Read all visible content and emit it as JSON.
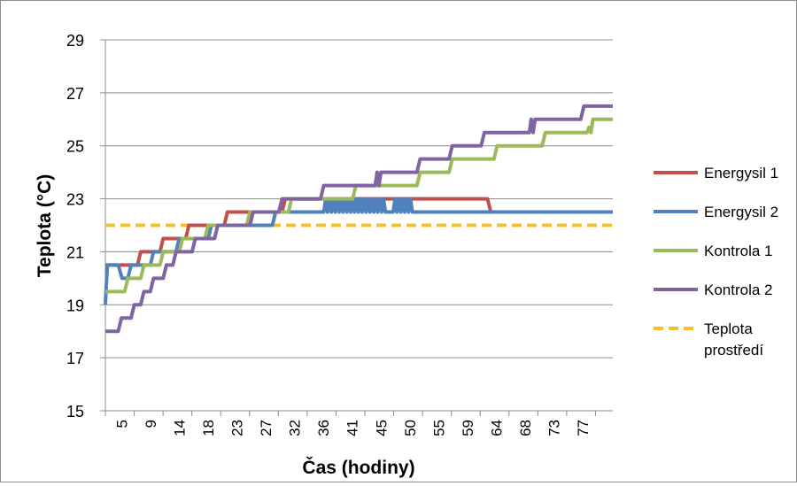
{
  "chart_data": {
    "type": "line",
    "xlabel": "Čas (hodiny)",
    "ylabel": "Teplota (°C)",
    "x_range": [
      0,
      79
    ],
    "ylim": [
      15,
      29
    ],
    "y_ticks": [
      15,
      17,
      19,
      21,
      23,
      25,
      27,
      29
    ],
    "x_tick_labels": [
      "5",
      "9",
      "14",
      "18",
      "23",
      "27",
      "32",
      "36",
      "41",
      "45",
      "50",
      "55",
      "59",
      "64",
      "68",
      "73",
      "77"
    ],
    "grid": "horizontal",
    "legend_position": "right",
    "series": [
      {
        "name": "Energysil 1",
        "color": "#c0504d",
        "dashed": false,
        "points": [
          [
            0,
            20.5
          ],
          [
            5,
            20.5
          ],
          [
            5.5,
            21
          ],
          [
            8.5,
            21
          ],
          [
            9,
            21.5
          ],
          [
            12.5,
            21.5
          ],
          [
            13,
            22
          ],
          [
            18.5,
            22
          ],
          [
            19,
            22.5
          ],
          [
            27.5,
            22.5
          ],
          [
            28,
            23
          ],
          [
            59.5,
            23
          ],
          [
            60,
            22.5
          ],
          [
            79,
            22.5
          ]
        ]
      },
      {
        "name": "Energysil 2",
        "color": "#4f81bd",
        "dashed": false,
        "points": [
          [
            0,
            19
          ],
          [
            0.3,
            20.5
          ],
          [
            2,
            20.5
          ],
          [
            2.6,
            20
          ],
          [
            3.5,
            20
          ],
          [
            4,
            20.5
          ],
          [
            7,
            20.5
          ],
          [
            7.5,
            21
          ],
          [
            11,
            21
          ],
          [
            11.5,
            21.5
          ],
          [
            16,
            21.5
          ],
          [
            16.5,
            22
          ],
          [
            26,
            22
          ],
          [
            26.5,
            22.5
          ],
          [
            34,
            22.5
          ],
          [
            34.3,
            23
          ],
          [
            34.6,
            22.5
          ],
          [
            34.9,
            23
          ],
          [
            35.2,
            22.5
          ],
          [
            35.5,
            23
          ],
          [
            35.8,
            22.5
          ],
          [
            36.1,
            23
          ],
          [
            36.4,
            22.5
          ],
          [
            36.7,
            23
          ],
          [
            37,
            22.5
          ],
          [
            37.3,
            23
          ],
          [
            37.6,
            22.5
          ],
          [
            37.9,
            23
          ],
          [
            38.2,
            22.5
          ],
          [
            38.5,
            23
          ],
          [
            38.8,
            22.5
          ],
          [
            39.1,
            23
          ],
          [
            39.4,
            22.5
          ],
          [
            39.7,
            23
          ],
          [
            40,
            22.5
          ],
          [
            40.3,
            23
          ],
          [
            40.6,
            22.5
          ],
          [
            40.9,
            23
          ],
          [
            41.2,
            22.5
          ],
          [
            41.5,
            23
          ],
          [
            41.8,
            22.5
          ],
          [
            42.1,
            23
          ],
          [
            42.4,
            22.5
          ],
          [
            42.7,
            23
          ],
          [
            43,
            22.5
          ],
          [
            43.3,
            23
          ],
          [
            43.6,
            22.5
          ],
          [
            44.8,
            22.5
          ],
          [
            45.1,
            23
          ],
          [
            45.4,
            22.5
          ],
          [
            45.7,
            23
          ],
          [
            46,
            22.5
          ],
          [
            46.3,
            23
          ],
          [
            46.6,
            22.5
          ],
          [
            46.9,
            23
          ],
          [
            47.2,
            22.5
          ],
          [
            47.5,
            23
          ],
          [
            47.8,
            22.5
          ],
          [
            79,
            22.5
          ]
        ]
      },
      {
        "name": "Kontrola 1",
        "color": "#9bbb59",
        "dashed": false,
        "points": [
          [
            0,
            19.5
          ],
          [
            3,
            19.5
          ],
          [
            3.5,
            20
          ],
          [
            5.5,
            20
          ],
          [
            6,
            20.5
          ],
          [
            8.5,
            20.5
          ],
          [
            9,
            21
          ],
          [
            11.5,
            21
          ],
          [
            12,
            21.5
          ],
          [
            15.5,
            21.5
          ],
          [
            16,
            22
          ],
          [
            22,
            22
          ],
          [
            22.5,
            22.5
          ],
          [
            28.5,
            22.5
          ],
          [
            29,
            23
          ],
          [
            38.5,
            23
          ],
          [
            39,
            23.5
          ],
          [
            48.5,
            23.5
          ],
          [
            49,
            24
          ],
          [
            53.5,
            24
          ],
          [
            54,
            24.5
          ],
          [
            60.5,
            24.5
          ],
          [
            61,
            25
          ],
          [
            68,
            25
          ],
          [
            68.5,
            25.5
          ],
          [
            75,
            25.5
          ],
          [
            75.3,
            25.7
          ],
          [
            75.6,
            25.5
          ],
          [
            75.9,
            26
          ],
          [
            79,
            26
          ]
        ]
      },
      {
        "name": "Kontrola 2",
        "color": "#8064a2",
        "dashed": false,
        "points": [
          [
            0,
            18
          ],
          [
            2,
            18
          ],
          [
            2.5,
            18.5
          ],
          [
            4,
            18.5
          ],
          [
            4.5,
            19
          ],
          [
            5.5,
            19
          ],
          [
            6,
            19.5
          ],
          [
            7,
            19.5
          ],
          [
            7.5,
            20
          ],
          [
            9,
            20
          ],
          [
            9.5,
            20.5
          ],
          [
            10.5,
            20.5
          ],
          [
            11,
            21
          ],
          [
            13.5,
            21
          ],
          [
            14,
            21.5
          ],
          [
            17,
            21.5
          ],
          [
            17.5,
            22
          ],
          [
            22.5,
            22
          ],
          [
            23,
            22.5
          ],
          [
            27,
            22.5
          ],
          [
            27.5,
            23
          ],
          [
            33.5,
            23
          ],
          [
            34,
            23.5
          ],
          [
            42,
            23.5
          ],
          [
            42.3,
            24
          ],
          [
            42.6,
            23.5
          ],
          [
            42.9,
            24
          ],
          [
            48.5,
            24
          ],
          [
            49,
            24.5
          ],
          [
            53.5,
            24.5
          ],
          [
            54,
            25
          ],
          [
            58.5,
            25
          ],
          [
            59,
            25.5
          ],
          [
            63.5,
            25.5
          ],
          [
            64,
            25.5
          ],
          [
            66,
            25.5
          ],
          [
            66.3,
            26
          ],
          [
            66.6,
            25.5
          ],
          [
            66.9,
            26
          ],
          [
            74,
            26
          ],
          [
            74.5,
            26.5
          ],
          [
            79,
            26.5
          ]
        ]
      },
      {
        "name": "Teplota prostředí",
        "color": "#f5c02a",
        "dashed": true,
        "points": [
          [
            0,
            22
          ],
          [
            79,
            22
          ]
        ]
      }
    ],
    "legend_labels": [
      {
        "name": "Energysil 1",
        "lines": [
          "Energysil 1"
        ]
      },
      {
        "name": "Energysil 2",
        "lines": [
          "Energysil 2"
        ]
      },
      {
        "name": "Kontrola 1",
        "lines": [
          "Kontrola 1"
        ]
      },
      {
        "name": "Kontrola 2",
        "lines": [
          "Kontrola 2"
        ]
      },
      {
        "name": "Teplota prostředí",
        "lines": [
          "Teplota",
          "prostředí"
        ]
      }
    ]
  }
}
